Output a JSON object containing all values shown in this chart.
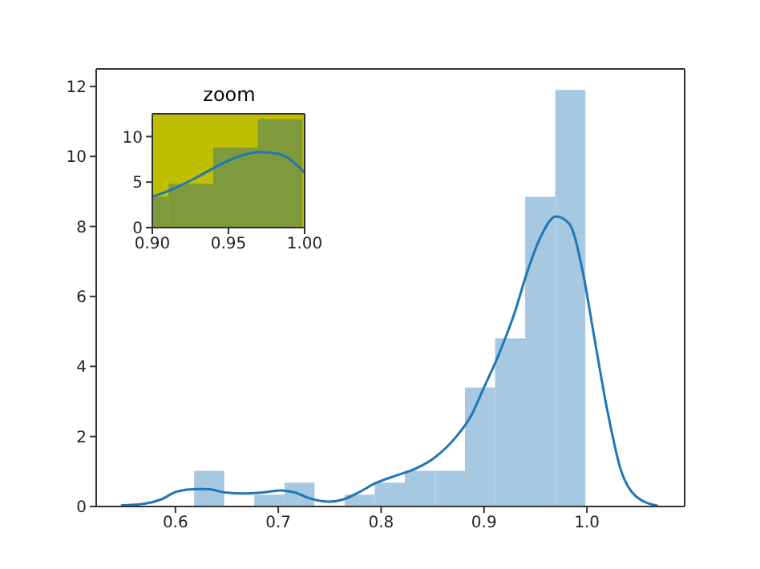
{
  "chart_data": [
    {
      "type": "histogram",
      "bins": [
        0.6182,
        0.6475,
        0.6767,
        0.706,
        0.7352,
        0.7645,
        0.7937,
        0.823,
        0.8522,
        0.8815,
        0.9107,
        0.94,
        0.9692,
        0.9985
      ],
      "values": [
        1.02,
        0,
        0.34,
        0.68,
        0,
        0.34,
        0.68,
        1.02,
        1.02,
        3.4,
        4.8,
        8.85,
        11.9
      ],
      "color": "#a6c8e1",
      "series": [
        {
          "type": "line",
          "color": "#1f77b4",
          "x": [
            0.547,
            0.57,
            0.586,
            0.6015,
            0.62,
            0.633,
            0.648,
            0.666,
            0.685,
            0.703,
            0.716,
            0.731,
            0.75,
            0.763,
            0.778,
            0.794,
            0.815,
            0.835,
            0.853,
            0.872,
            0.887,
            0.9,
            0.913,
            0.929,
            0.942,
            0.955,
            0.97,
            0.983,
            0.996,
            1.007,
            1.02,
            1.033,
            1.048,
            1.069
          ],
          "values": [
            0.03,
            0.08,
            0.2,
            0.43,
            0.5,
            0.49,
            0.4,
            0.37,
            0.4,
            0.46,
            0.4,
            0.23,
            0.14,
            0.2,
            0.4,
            0.66,
            0.89,
            1.1,
            1.42,
            1.96,
            2.57,
            3.4,
            4.25,
            5.47,
            6.7,
            7.7,
            8.29,
            8.07,
            6.7,
            4.86,
            2.72,
            1.04,
            0.28,
            0.02
          ]
        }
      ],
      "xlim": [
        0.523,
        1.095
      ],
      "ylim": [
        0,
        12.5
      ],
      "xticks": [
        0.6,
        0.7,
        0.8,
        0.9,
        {
          "value": 1.0,
          "label": "1.0"
        }
      ],
      "yticks": [
        0,
        2,
        4,
        6,
        8,
        10,
        12
      ]
    },
    {
      "type": "histogram",
      "title": "zoom",
      "bins": [
        0.9,
        0.9107,
        0.94,
        0.9692,
        0.9985
      ],
      "values": [
        3.4,
        4.8,
        8.8,
        11.9
      ],
      "color": "#7f9a3c",
      "bands": [
        {
          "axis": "y",
          "from": 0,
          "to": 12.5,
          "color": "#bfbf00"
        }
      ],
      "series": [
        {
          "type": "line",
          "color": "#1f77b4",
          "x": [
            0.9,
            0.913,
            0.929,
            0.942,
            0.955,
            0.97,
            0.983,
            0.996,
            1.0
          ],
          "values": [
            3.4,
            4.2,
            5.5,
            6.7,
            7.7,
            8.3,
            8.1,
            6.7,
            6.0
          ]
        }
      ],
      "xlim": [
        0.9,
        1.0
      ],
      "ylim": [
        0,
        12.5
      ],
      "xticks": [
        {
          "value": 0.9,
          "label": "0.90"
        },
        {
          "value": 0.95,
          "label": "0.95"
        },
        {
          "value": 1.0,
          "label": "1.00"
        }
      ],
      "yticks": [
        0,
        5,
        10
      ]
    }
  ]
}
